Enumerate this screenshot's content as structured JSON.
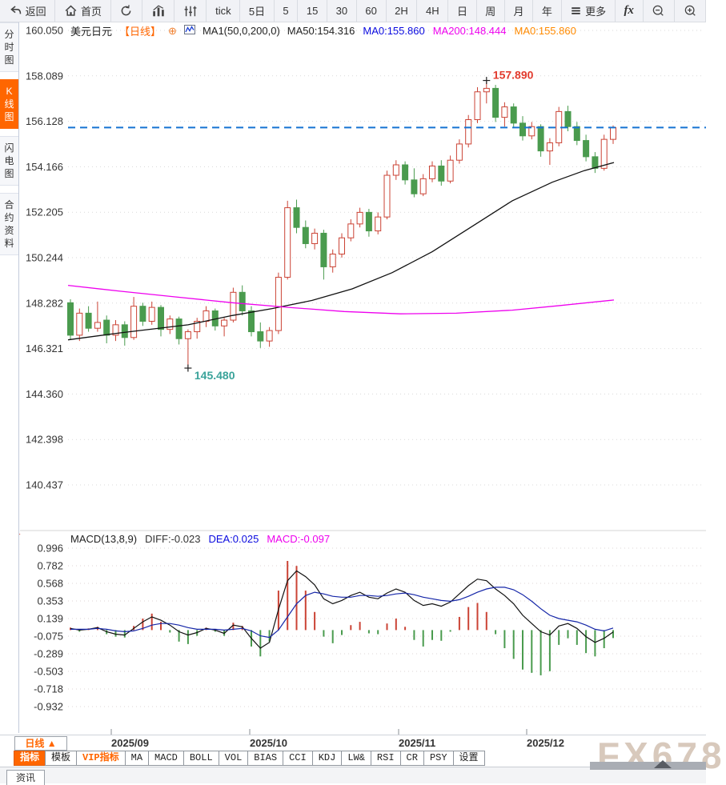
{
  "toolbar": {
    "items": [
      {
        "name": "back-button",
        "icon": "back-icon",
        "label": "返回"
      },
      {
        "name": "home-button",
        "icon": "home-icon",
        "label": "首页"
      },
      {
        "name": "refresh-button",
        "icon": "refresh-icon",
        "label": ""
      },
      {
        "name": "chart-stats-button",
        "icon": "bar-chart-icon",
        "label": ""
      },
      {
        "name": "sliders-button",
        "icon": "sliders-icon",
        "label": ""
      },
      {
        "name": "interval-tick-button",
        "label": "tick"
      },
      {
        "name": "interval-5d-button",
        "label": "5日"
      },
      {
        "name": "interval-5-button",
        "label": "5"
      },
      {
        "name": "interval-15-button",
        "label": "15"
      },
      {
        "name": "interval-30-button",
        "label": "30"
      },
      {
        "name": "interval-60-button",
        "label": "60"
      },
      {
        "name": "interval-2h-button",
        "label": "2H"
      },
      {
        "name": "interval-day-button",
        "label": "4H"
      },
      {
        "name": "interval-daily-button",
        "label": "日"
      },
      {
        "name": "interval-week-button",
        "label": "周"
      },
      {
        "name": "interval-month-button",
        "label": "月"
      },
      {
        "name": "interval-year-button",
        "label": "年"
      },
      {
        "name": "more-button",
        "icon": "menu-icon",
        "label": "更多"
      },
      {
        "name": "fx-button",
        "label": "fx",
        "style": "fx"
      },
      {
        "name": "zoom-out-button",
        "icon": "zoom-out-icon",
        "label": ""
      },
      {
        "name": "zoom-in-button",
        "icon": "zoom-in-icon",
        "label": ""
      }
    ]
  },
  "sidebar": {
    "items": [
      {
        "name": "sidebar-item-timeshare",
        "label": "分时图",
        "active": false
      },
      {
        "name": "sidebar-item-kline",
        "label": "K线图",
        "active": true
      },
      {
        "name": "sidebar-item-lightning",
        "label": "闪电图",
        "active": false
      },
      {
        "name": "sidebar-item-contract-info",
        "label": "合约资料",
        "active": false
      }
    ]
  },
  "chart_header": {
    "symbol": "美元日元",
    "period": "【日线】",
    "add_icon": "⊕",
    "ma_settings": "MA1(50,0,200,0)",
    "ma_values": [
      {
        "text": "MA50:154.316",
        "color": "#222222"
      },
      {
        "text": "MA0:155.860",
        "color": "#0a0adf"
      },
      {
        "text": "MA200:148.444",
        "color": "#ee00ee"
      },
      {
        "text": "MA0:155.860",
        "color": "#ff8a00"
      }
    ]
  },
  "macd_header": {
    "title": "MACD(13,8,9)",
    "values": [
      {
        "text": "DIFF:-0.023",
        "color": "#333333"
      },
      {
        "text": "DEA:0.025",
        "color": "#0a0adf"
      },
      {
        "text": "MACD:-0.097",
        "color": "#ee00ee"
      }
    ]
  },
  "bottom": {
    "period_button": "日线 ▲",
    "dates": [
      {
        "label": "2025/09",
        "x": 139
      },
      {
        "label": "2025/10",
        "x": 312
      },
      {
        "label": "2025/11",
        "x": 498
      },
      {
        "label": "2025/12",
        "x": 658
      }
    ],
    "tabs": [
      {
        "name": "tab-indicators",
        "label": "指标",
        "style": "active"
      },
      {
        "name": "tab-templates",
        "label": "模板",
        "style": ""
      },
      {
        "name": "tab-vip-indicators",
        "label": "VIP指标",
        "style": "vip"
      },
      {
        "name": "tab-ma",
        "label": "MA",
        "style": ""
      },
      {
        "name": "tab-macd",
        "label": "MACD",
        "style": ""
      },
      {
        "name": "tab-boll",
        "label": "BOLL",
        "style": ""
      },
      {
        "name": "tab-vol",
        "label": "VOL",
        "style": ""
      },
      {
        "name": "tab-bias",
        "label": "BIAS",
        "style": ""
      },
      {
        "name": "tab-cci",
        "label": "CCI",
        "style": ""
      },
      {
        "name": "tab-kdj",
        "label": "KDJ",
        "style": ""
      },
      {
        "name": "tab-lwr",
        "label": "LW&",
        "style": ""
      },
      {
        "name": "tab-rsi",
        "label": "RSI",
        "style": ""
      },
      {
        "name": "tab-cr",
        "label": "CR",
        "style": ""
      },
      {
        "name": "tab-psy",
        "label": "PSY",
        "style": ""
      },
      {
        "name": "tab-settings",
        "label": "设置",
        "style": ""
      }
    ],
    "news_tab": "资讯",
    "watermark": "FX678"
  },
  "chart_data": [
    {
      "type": "candlestick",
      "title": "美元日元 日线",
      "grid": true,
      "up_color": "#cb4335",
      "down_color": "#4a9b4e",
      "ma50_color": "#111111",
      "ma200_color": "#ee00ee",
      "y_ticks": [
        "160.050",
        "158.089",
        "156.128",
        "154.166",
        "152.205",
        "150.244",
        "148.282",
        "146.321",
        "144.360",
        "142.398",
        "140.437"
      ],
      "x_dates": [
        "2025/09",
        "2025/10",
        "2025/11",
        "2025/12"
      ],
      "last_price": {
        "value": 155.86,
        "color": "#1673d2"
      },
      "annotations": {
        "high": {
          "text": "157.890",
          "price": 157.89,
          "index": 46,
          "color": "#e23b2e"
        },
        "low": {
          "text": "145.480",
          "price": 145.48,
          "index": 13,
          "color": "#3aa39a"
        }
      },
      "candles": [
        [
          148.3,
          148.45,
          146.7,
          146.9
        ],
        [
          146.9,
          148.05,
          146.65,
          147.85
        ],
        [
          147.85,
          148.15,
          147.05,
          147.2
        ],
        [
          147.2,
          148.35,
          147.05,
          147.45
        ],
        [
          147.55,
          147.75,
          146.55,
          146.9
        ],
        [
          146.9,
          147.55,
          146.65,
          147.35
        ],
        [
          147.35,
          147.5,
          146.45,
          146.8
        ],
        [
          146.8,
          148.55,
          146.7,
          148.15
        ],
        [
          148.15,
          148.3,
          147.3,
          147.5
        ],
        [
          147.5,
          148.35,
          147.35,
          148.1
        ],
        [
          148.1,
          148.2,
          146.85,
          147.15
        ],
        [
          147.15,
          147.75,
          146.95,
          147.6
        ],
        [
          147.6,
          147.7,
          146.5,
          146.75
        ],
        [
          146.75,
          147.15,
          145.48,
          147.05
        ],
        [
          147.05,
          147.65,
          146.75,
          147.5
        ],
        [
          147.5,
          148.15,
          147.25,
          147.95
        ],
        [
          147.95,
          148.05,
          147.1,
          147.3
        ],
        [
          147.3,
          147.65,
          146.85,
          147.55
        ],
        [
          147.55,
          148.95,
          147.45,
          148.75
        ],
        [
          148.75,
          149.05,
          147.75,
          147.95
        ],
        [
          147.95,
          148.15,
          146.85,
          147.05
        ],
        [
          147.05,
          147.45,
          146.35,
          146.65
        ],
        [
          146.65,
          147.25,
          146.4,
          147.1
        ],
        [
          147.1,
          149.6,
          146.95,
          149.4
        ],
        [
          149.4,
          152.7,
          149.3,
          152.4
        ],
        [
          152.4,
          152.75,
          151.3,
          151.55
        ],
        [
          151.55,
          151.85,
          150.65,
          150.85
        ],
        [
          150.85,
          151.5,
          150.6,
          151.3
        ],
        [
          151.3,
          151.45,
          149.3,
          149.85
        ],
        [
          149.85,
          150.6,
          149.6,
          150.4
        ],
        [
          150.4,
          151.3,
          150.25,
          151.1
        ],
        [
          151.1,
          151.9,
          150.95,
          151.7
        ],
        [
          151.7,
          152.4,
          151.55,
          152.2
        ],
        [
          152.2,
          152.35,
          151.15,
          151.4
        ],
        [
          151.4,
          152.2,
          151.25,
          152.0
        ],
        [
          152.0,
          154.0,
          151.9,
          153.8
        ],
        [
          153.8,
          154.45,
          153.6,
          154.25
        ],
        [
          154.25,
          154.4,
          153.4,
          153.6
        ],
        [
          153.6,
          154.1,
          152.85,
          153.0
        ],
        [
          153.0,
          153.85,
          152.9,
          153.65
        ],
        [
          153.65,
          154.4,
          153.5,
          154.2
        ],
        [
          154.2,
          154.45,
          153.35,
          153.55
        ],
        [
          153.55,
          154.65,
          153.45,
          154.45
        ],
        [
          154.45,
          155.35,
          154.3,
          155.15
        ],
        [
          155.15,
          156.4,
          155.0,
          156.2
        ],
        [
          156.2,
          157.6,
          156.05,
          157.4
        ],
        [
          157.4,
          157.89,
          156.9,
          157.55
        ],
        [
          157.55,
          157.7,
          156.1,
          156.3
        ],
        [
          156.3,
          156.95,
          155.9,
          156.75
        ],
        [
          156.75,
          156.9,
          155.85,
          156.05
        ],
        [
          156.05,
          156.35,
          155.3,
          155.5
        ],
        [
          155.5,
          156.1,
          155.35,
          155.9
        ],
        [
          155.9,
          156.0,
          154.6,
          154.85
        ],
        [
          154.85,
          155.4,
          154.25,
          155.2
        ],
        [
          155.2,
          156.75,
          155.05,
          156.55
        ],
        [
          156.55,
          156.8,
          155.7,
          155.9
        ],
        [
          155.9,
          156.1,
          155.1,
          155.3
        ],
        [
          155.3,
          155.55,
          154.4,
          154.6
        ],
        [
          154.6,
          154.8,
          153.9,
          154.1
        ],
        [
          154.1,
          155.55,
          154.0,
          155.35
        ],
        [
          155.35,
          155.95,
          155.15,
          155.86
        ]
      ],
      "ma50_points": [
        [
          85,
          146.7
        ],
        [
          150,
          147.0
        ],
        [
          235,
          147.35
        ],
        [
          290,
          147.75
        ],
        [
          340,
          148.05
        ],
        [
          390,
          148.4
        ],
        [
          440,
          148.9
        ],
        [
          490,
          149.6
        ],
        [
          540,
          150.5
        ],
        [
          590,
          151.6
        ],
        [
          640,
          152.7
        ],
        [
          690,
          153.5
        ],
        [
          730,
          154.0
        ],
        [
          767,
          154.35
        ]
      ],
      "ma200_points": [
        [
          85,
          149.05
        ],
        [
          150,
          148.8
        ],
        [
          220,
          148.55
        ],
        [
          290,
          148.3
        ],
        [
          360,
          148.1
        ],
        [
          430,
          147.92
        ],
        [
          500,
          147.82
        ],
        [
          570,
          147.85
        ],
        [
          640,
          147.98
        ],
        [
          700,
          148.18
        ],
        [
          767,
          148.42
        ]
      ]
    },
    {
      "type": "macd",
      "params": "(13,8,9)",
      "diff_last": -0.023,
      "dea_last": 0.025,
      "macd_last": -0.097,
      "hist_up_color": "#cb4335",
      "hist_down_color": "#4a9b4e",
      "diff_color": "#111111",
      "dea_color": "#1526a8",
      "y_ticks": [
        "0.996",
        "0.782",
        "0.568",
        "0.353",
        "0.139",
        "-0.075",
        "-0.289",
        "-0.503",
        "-0.718",
        "-0.932"
      ],
      "hist": [
        0.03,
        -0.02,
        0.02,
        0.04,
        -0.05,
        -0.08,
        -0.09,
        0.05,
        0.14,
        0.2,
        0.1,
        -0.03,
        -0.14,
        -0.17,
        -0.07,
        0.03,
        -0.02,
        -0.07,
        0.09,
        0.05,
        -0.2,
        -0.32,
        -0.14,
        0.48,
        0.84,
        0.78,
        0.48,
        0.22,
        -0.08,
        -0.16,
        -0.06,
        0.06,
        0.1,
        -0.04,
        -0.05,
        0.08,
        0.14,
        0.04,
        -0.12,
        -0.2,
        -0.12,
        -0.13,
        -0.02,
        0.16,
        0.28,
        0.33,
        0.22,
        -0.05,
        -0.22,
        -0.35,
        -0.48,
        -0.52,
        -0.55,
        -0.5,
        -0.18,
        -0.1,
        -0.18,
        -0.28,
        -0.32,
        -0.22,
        -0.097
      ],
      "diff": [
        0.02,
        0.0,
        0.01,
        0.03,
        -0.02,
        -0.05,
        -0.06,
        0.02,
        0.1,
        0.16,
        0.12,
        0.06,
        -0.02,
        -0.06,
        -0.03,
        0.02,
        0.0,
        -0.04,
        0.06,
        0.04,
        -0.1,
        -0.22,
        -0.15,
        0.25,
        0.6,
        0.72,
        0.65,
        0.55,
        0.38,
        0.32,
        0.36,
        0.42,
        0.46,
        0.4,
        0.38,
        0.45,
        0.5,
        0.46,
        0.36,
        0.3,
        0.32,
        0.29,
        0.34,
        0.44,
        0.54,
        0.62,
        0.6,
        0.5,
        0.42,
        0.32,
        0.18,
        0.08,
        -0.02,
        -0.06,
        0.05,
        0.08,
        0.02,
        -0.08,
        -0.15,
        -0.1,
        -0.023
      ],
      "dea": [
        0.01,
        0.01,
        0.01,
        0.02,
        0.01,
        -0.01,
        -0.02,
        -0.01,
        0.02,
        0.06,
        0.08,
        0.08,
        0.06,
        0.03,
        0.01,
        0.01,
        0.01,
        0.0,
        0.01,
        0.02,
        -0.01,
        -0.07,
        -0.09,
        0.0,
        0.16,
        0.32,
        0.42,
        0.46,
        0.44,
        0.41,
        0.4,
        0.4,
        0.42,
        0.42,
        0.41,
        0.42,
        0.44,
        0.45,
        0.43,
        0.4,
        0.38,
        0.36,
        0.35,
        0.37,
        0.41,
        0.46,
        0.5,
        0.52,
        0.52,
        0.49,
        0.43,
        0.35,
        0.26,
        0.18,
        0.14,
        0.12,
        0.1,
        0.06,
        0.01,
        -0.01,
        0.025
      ]
    }
  ]
}
